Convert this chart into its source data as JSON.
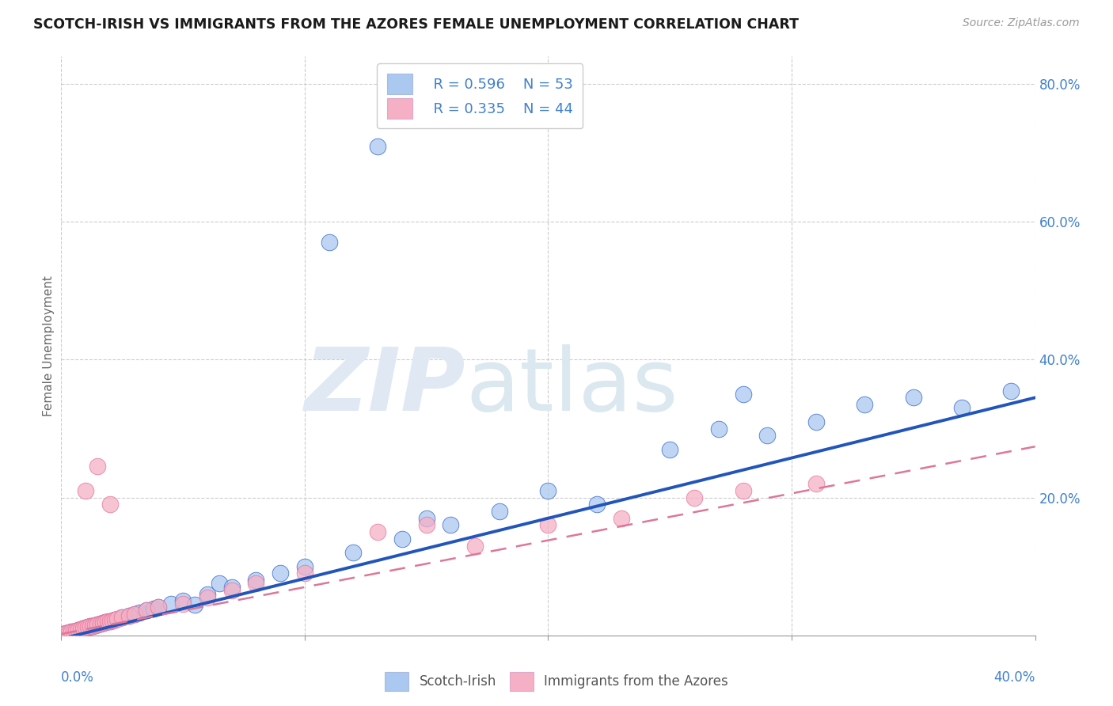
{
  "title": "SCOTCH-IRISH VS IMMIGRANTS FROM THE AZORES FEMALE UNEMPLOYMENT CORRELATION CHART",
  "source": "Source: ZipAtlas.com",
  "ylabel": "Female Unemployment",
  "xlim": [
    0.0,
    0.4
  ],
  "ylim": [
    0.0,
    0.84
  ],
  "yticks": [
    0.0,
    0.2,
    0.4,
    0.6,
    0.8
  ],
  "ytick_labels": [
    "",
    "20.0%",
    "40.0%",
    "60.0%",
    "80.0%"
  ],
  "legend_r1": "R = 0.596",
  "legend_n1": "N = 53",
  "legend_r2": "R = 0.335",
  "legend_n2": "N = 44",
  "color_blue": "#aac8f0",
  "color_pink": "#f5b0c5",
  "color_blue_dark": "#3366cc",
  "color_pink_dark": "#e8729a",
  "color_blue_text": "#4080cc",
  "trendline_blue": "#2255bb",
  "trendline_pink": "#dd7799",
  "blue_trendline_slope": 0.875,
  "blue_trendline_intercept": -0.005,
  "pink_trendline_slope": 0.68,
  "pink_trendline_intercept": 0.002,
  "scotch_irish_x": [
    0.002,
    0.003,
    0.004,
    0.005,
    0.006,
    0.007,
    0.008,
    0.009,
    0.01,
    0.011,
    0.012,
    0.013,
    0.014,
    0.015,
    0.016,
    0.017,
    0.018,
    0.02,
    0.022,
    0.025,
    0.028,
    0.03,
    0.032,
    0.035,
    0.038,
    0.04,
    0.045,
    0.05,
    0.055,
    0.06,
    0.065,
    0.07,
    0.08,
    0.09,
    0.1,
    0.12,
    0.14,
    0.16,
    0.18,
    0.2,
    0.22,
    0.25,
    0.27,
    0.29,
    0.31,
    0.33,
    0.35,
    0.37,
    0.39,
    0.28,
    0.15,
    0.11,
    0.13
  ],
  "scotch_irish_y": [
    0.003,
    0.004,
    0.005,
    0.006,
    0.007,
    0.008,
    0.009,
    0.01,
    0.011,
    0.012,
    0.013,
    0.014,
    0.015,
    0.016,
    0.017,
    0.018,
    0.019,
    0.021,
    0.023,
    0.026,
    0.029,
    0.031,
    0.033,
    0.036,
    0.039,
    0.041,
    0.046,
    0.05,
    0.045,
    0.06,
    0.075,
    0.07,
    0.08,
    0.09,
    0.1,
    0.12,
    0.14,
    0.16,
    0.18,
    0.21,
    0.19,
    0.27,
    0.3,
    0.29,
    0.31,
    0.335,
    0.345,
    0.33,
    0.355,
    0.35,
    0.17,
    0.57,
    0.71
  ],
  "azores_x": [
    0.001,
    0.002,
    0.003,
    0.004,
    0.005,
    0.006,
    0.007,
    0.008,
    0.009,
    0.01,
    0.011,
    0.012,
    0.013,
    0.014,
    0.015,
    0.016,
    0.017,
    0.018,
    0.019,
    0.02,
    0.021,
    0.022,
    0.023,
    0.025,
    0.028,
    0.03,
    0.035,
    0.04,
    0.05,
    0.06,
    0.07,
    0.08,
    0.1,
    0.13,
    0.15,
    0.17,
    0.2,
    0.23,
    0.26,
    0.28,
    0.31,
    0.01,
    0.02,
    0.015
  ],
  "azores_y": [
    0.002,
    0.003,
    0.004,
    0.005,
    0.006,
    0.007,
    0.008,
    0.009,
    0.01,
    0.011,
    0.012,
    0.013,
    0.014,
    0.015,
    0.016,
    0.017,
    0.018,
    0.019,
    0.02,
    0.021,
    0.022,
    0.023,
    0.024,
    0.026,
    0.029,
    0.031,
    0.036,
    0.041,
    0.046,
    0.055,
    0.065,
    0.075,
    0.09,
    0.15,
    0.16,
    0.13,
    0.16,
    0.17,
    0.2,
    0.21,
    0.22,
    0.21,
    0.19,
    0.245
  ]
}
